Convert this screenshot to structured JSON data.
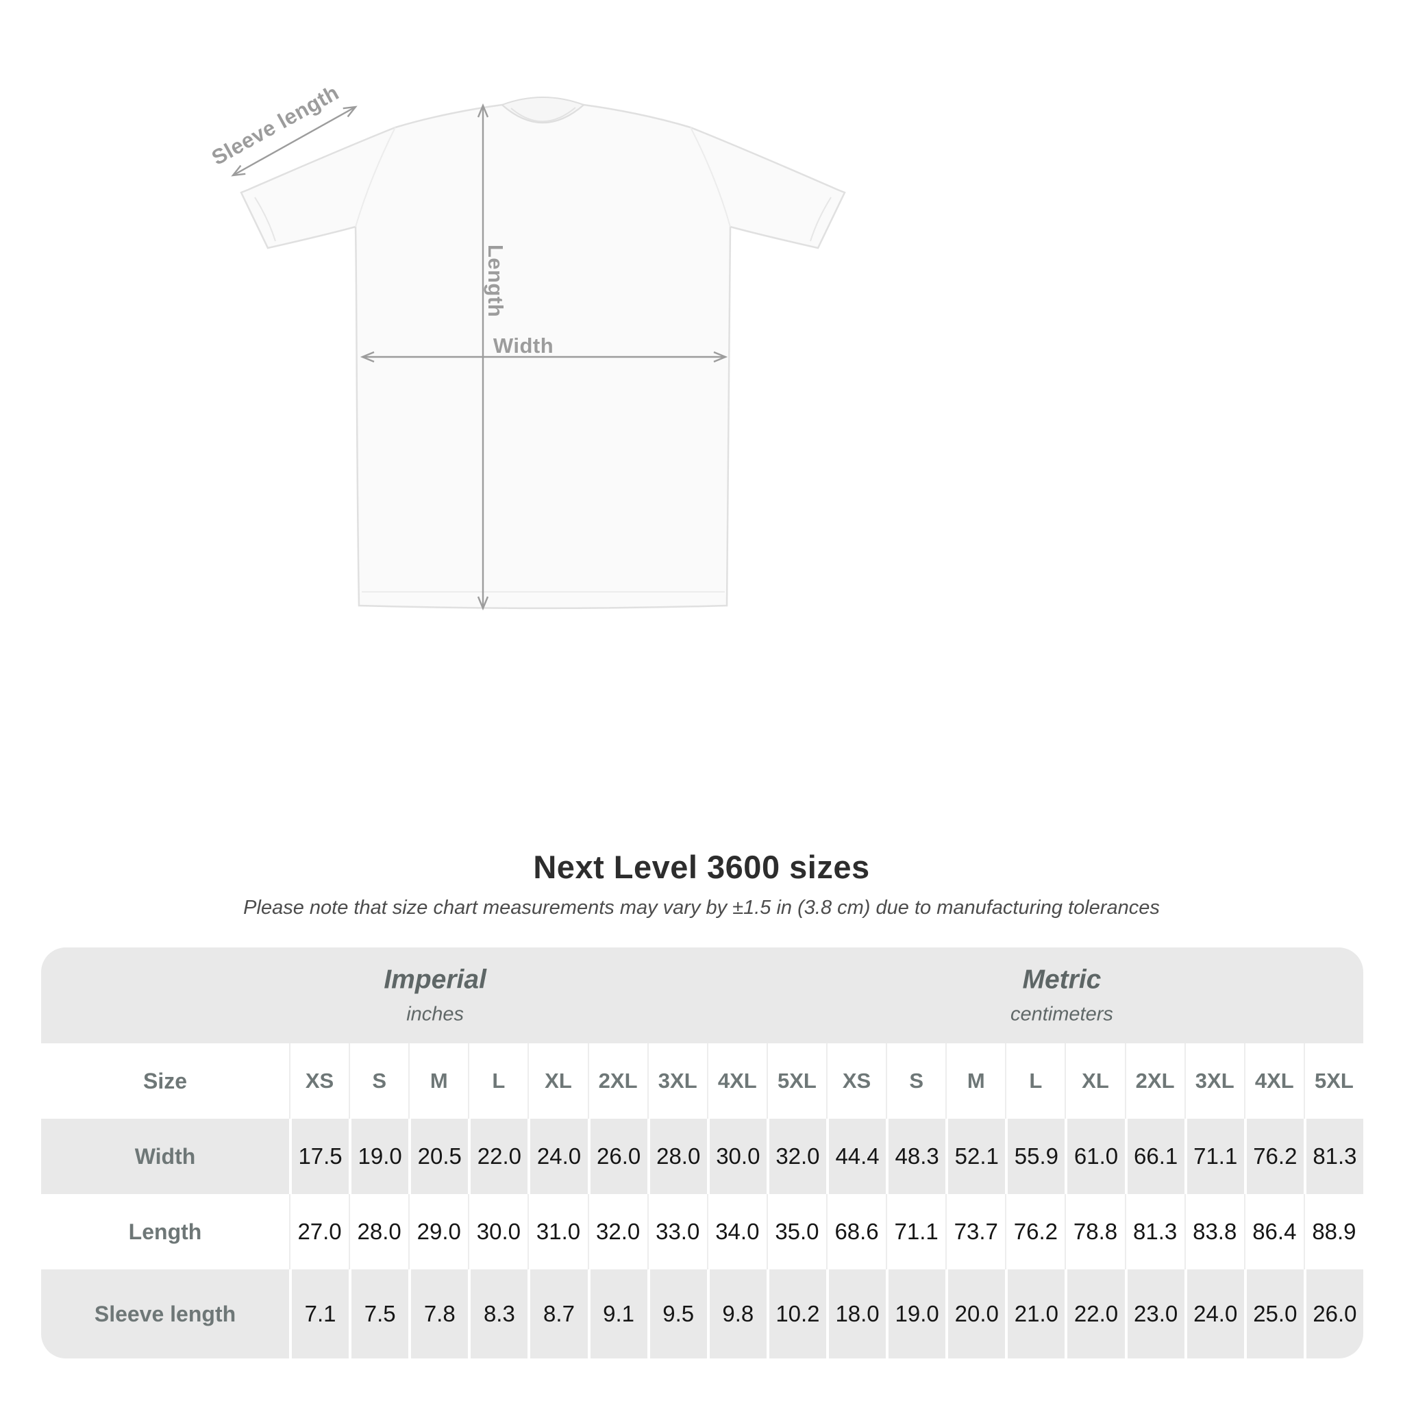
{
  "diagram": {
    "sleeve_label": "Sleeve length",
    "length_label": "Length",
    "width_label": "Width",
    "arrow_color": "#9c9c9c",
    "shirt_fill": "#fafafa",
    "shirt_outline": "#e0e0e0"
  },
  "title": "Next Level 3600 sizes",
  "subtitle": "Please note that size chart measurements may vary by ±1.5 in (3.8 cm) due to manufacturing tolerances",
  "table": {
    "panel_color": "#e9e9e9",
    "size_label": "Size",
    "sections": [
      {
        "name": "Imperial",
        "unit": "inches"
      },
      {
        "name": "Metric",
        "unit": "centimeters"
      }
    ],
    "sizes": [
      "XS",
      "S",
      "M",
      "L",
      "XL",
      "2XL",
      "3XL",
      "4XL",
      "5XL"
    ],
    "rows": [
      {
        "label": "Width",
        "imperial": [
          "17.5",
          "19.0",
          "20.5",
          "22.0",
          "24.0",
          "26.0",
          "28.0",
          "30.0",
          "32.0"
        ],
        "metric": [
          "44.4",
          "48.3",
          "52.1",
          "55.9",
          "61.0",
          "66.1",
          "71.1",
          "76.2",
          "81.3"
        ]
      },
      {
        "label": "Length",
        "imperial": [
          "27.0",
          "28.0",
          "29.0",
          "30.0",
          "31.0",
          "32.0",
          "33.0",
          "34.0",
          "35.0"
        ],
        "metric": [
          "68.6",
          "71.1",
          "73.7",
          "76.2",
          "78.8",
          "81.3",
          "83.8",
          "86.4",
          "88.9"
        ]
      },
      {
        "label": "Sleeve length",
        "imperial": [
          "7.1",
          "7.5",
          "7.8",
          "8.3",
          "8.7",
          "9.1",
          "9.5",
          "9.8",
          "10.2"
        ],
        "metric": [
          "18.0",
          "19.0",
          "20.0",
          "21.0",
          "22.0",
          "23.0",
          "24.0",
          "25.0",
          "26.0"
        ]
      }
    ]
  },
  "chart_data": {
    "type": "table",
    "title": "Next Level 3600 sizes",
    "column_groups": [
      "Imperial (inches)",
      "Metric (centimeters)"
    ],
    "columns": [
      "XS",
      "S",
      "M",
      "L",
      "XL",
      "2XL",
      "3XL",
      "4XL",
      "5XL",
      "XS",
      "S",
      "M",
      "L",
      "XL",
      "2XL",
      "3XL",
      "4XL",
      "5XL"
    ],
    "row_labels": [
      "Width",
      "Length",
      "Sleeve length"
    ],
    "values": [
      [
        17.5,
        19.0,
        20.5,
        22.0,
        24.0,
        26.0,
        28.0,
        30.0,
        32.0,
        44.4,
        48.3,
        52.1,
        55.9,
        61.0,
        66.1,
        71.1,
        76.2,
        81.3
      ],
      [
        27.0,
        28.0,
        29.0,
        30.0,
        31.0,
        32.0,
        33.0,
        34.0,
        35.0,
        68.6,
        71.1,
        73.7,
        76.2,
        78.8,
        81.3,
        83.8,
        86.4,
        88.9
      ],
      [
        7.1,
        7.5,
        7.8,
        8.3,
        8.7,
        9.1,
        9.5,
        9.8,
        10.2,
        18.0,
        19.0,
        20.0,
        21.0,
        22.0,
        23.0,
        24.0,
        25.0,
        26.0
      ]
    ]
  }
}
